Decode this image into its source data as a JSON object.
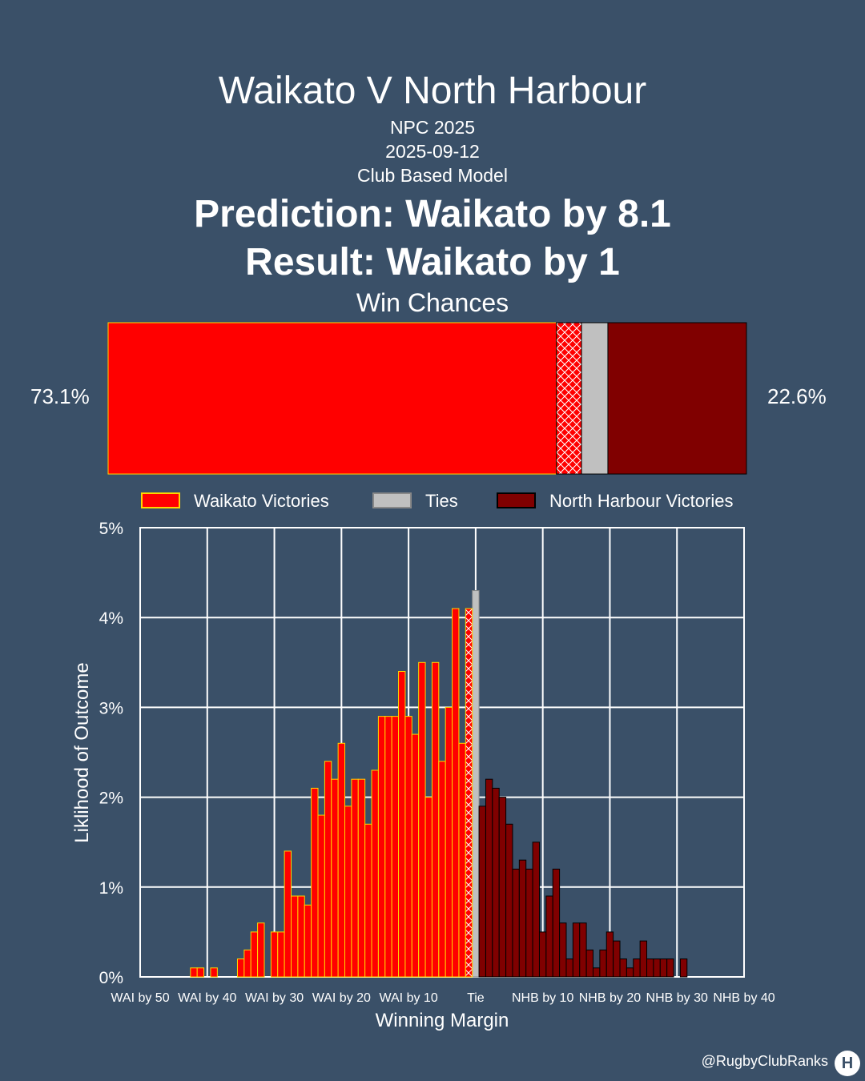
{
  "header": {
    "title": "Waikato V North Harbour",
    "competition": "NPC 2025",
    "date": "2025-09-12",
    "model": "Club Based Model",
    "prediction": "Prediction: Waikato by 8.1",
    "result": "Result: Waikato by 1",
    "win_chances_title": "Win Chances"
  },
  "win_chances": {
    "home_pct_label": "73.1%",
    "away_pct_label": "22.6%",
    "home": 73.1,
    "home_result_band": 4.1,
    "tie": 4.3,
    "away": 22.6,
    "colors": {
      "home": "#ff0000",
      "tie": "#c0c0c0",
      "away": "#800000",
      "home_edge": "#ffd700"
    }
  },
  "legend": {
    "items": [
      {
        "label": "Waikato Victories",
        "color": "#ff0000",
        "edge": "#ffd700"
      },
      {
        "label": "Ties",
        "color": "#c0c0c0",
        "edge": "#888888"
      },
      {
        "label": "North Harbour Victories",
        "color": "#800000",
        "edge": "#000000"
      }
    ]
  },
  "chart_data": {
    "type": "bar",
    "xlabel": "Winning Margin",
    "ylabel": "Liklihood of Outcome",
    "xlim": [
      -50,
      40
    ],
    "ylim": [
      0,
      5
    ],
    "grid": true,
    "x_ticks": [
      {
        "value": -50,
        "label": "WAI by 50"
      },
      {
        "value": -40,
        "label": "WAI by 40"
      },
      {
        "value": -30,
        "label": "WAI by 30"
      },
      {
        "value": -20,
        "label": "WAI by 20"
      },
      {
        "value": -10,
        "label": "WAI by 10"
      },
      {
        "value": 0,
        "label": "Tie"
      },
      {
        "value": 10,
        "label": "NHB by 10"
      },
      {
        "value": 20,
        "label": "NHB by 20"
      },
      {
        "value": 30,
        "label": "NHB by 30"
      },
      {
        "value": 40,
        "label": "NHB by 40"
      }
    ],
    "y_ticks": [
      {
        "value": 0,
        "label": "0%"
      },
      {
        "value": 1,
        "label": "1%"
      },
      {
        "value": 2,
        "label": "2%"
      },
      {
        "value": 3,
        "label": "3%"
      },
      {
        "value": 4,
        "label": "4%"
      },
      {
        "value": 5,
        "label": "5%"
      }
    ],
    "actual_result_margin": -1,
    "series": [
      {
        "name": "Waikato Victories",
        "color": "#ff0000",
        "x": [
          -42,
          -41,
          -39,
          -35,
          -34,
          -33,
          -32,
          -30,
          -29,
          -28,
          -27,
          -26,
          -25,
          -24,
          -23,
          -22,
          -21,
          -20,
          -19,
          -18,
          -17,
          -16,
          -15,
          -14,
          -13,
          -12,
          -11,
          -10,
          -9,
          -8,
          -7,
          -6,
          -5,
          -4,
          -3,
          -2,
          -1
        ],
        "values": [
          0.1,
          0.1,
          0.1,
          0.2,
          0.3,
          0.5,
          0.6,
          0.5,
          0.5,
          1.4,
          0.9,
          0.9,
          0.8,
          2.1,
          1.8,
          2.4,
          2.2,
          2.6,
          1.9,
          2.2,
          2.2,
          1.7,
          2.3,
          2.9,
          2.9,
          2.9,
          3.4,
          2.9,
          2.7,
          3.5,
          2.0,
          3.5,
          2.4,
          3.0,
          4.1,
          2.6,
          1.7
        ]
      },
      {
        "name": "Ties",
        "color": "#c0c0c0",
        "x": [
          0
        ],
        "values": [
          4.3
        ]
      },
      {
        "name": "North Harbour Victories",
        "color": "#800000",
        "x": [
          1,
          2,
          3,
          4,
          5,
          6,
          7,
          8,
          9,
          10,
          11,
          12,
          13,
          14,
          15,
          16,
          17,
          18,
          19,
          20,
          21,
          22,
          23,
          24,
          25,
          26,
          27,
          28,
          29,
          31
        ],
        "values": [
          1.9,
          2.2,
          2.1,
          2.0,
          1.7,
          1.2,
          1.3,
          1.2,
          1.5,
          0.5,
          0.9,
          1.2,
          0.6,
          0.2,
          0.6,
          0.6,
          0.3,
          0.1,
          0.3,
          0.5,
          0.4,
          0.2,
          0.1,
          0.2,
          0.4,
          0.2,
          0.2,
          0.2,
          0.2,
          0.2
        ]
      },
      {
        "name": "Actual Result",
        "color": "#ff0000",
        "x": [
          -1
        ],
        "values": [
          4.1
        ]
      }
    ]
  },
  "footer": {
    "handle": "@RugbyClubRanks",
    "logo_glyph": "H"
  }
}
